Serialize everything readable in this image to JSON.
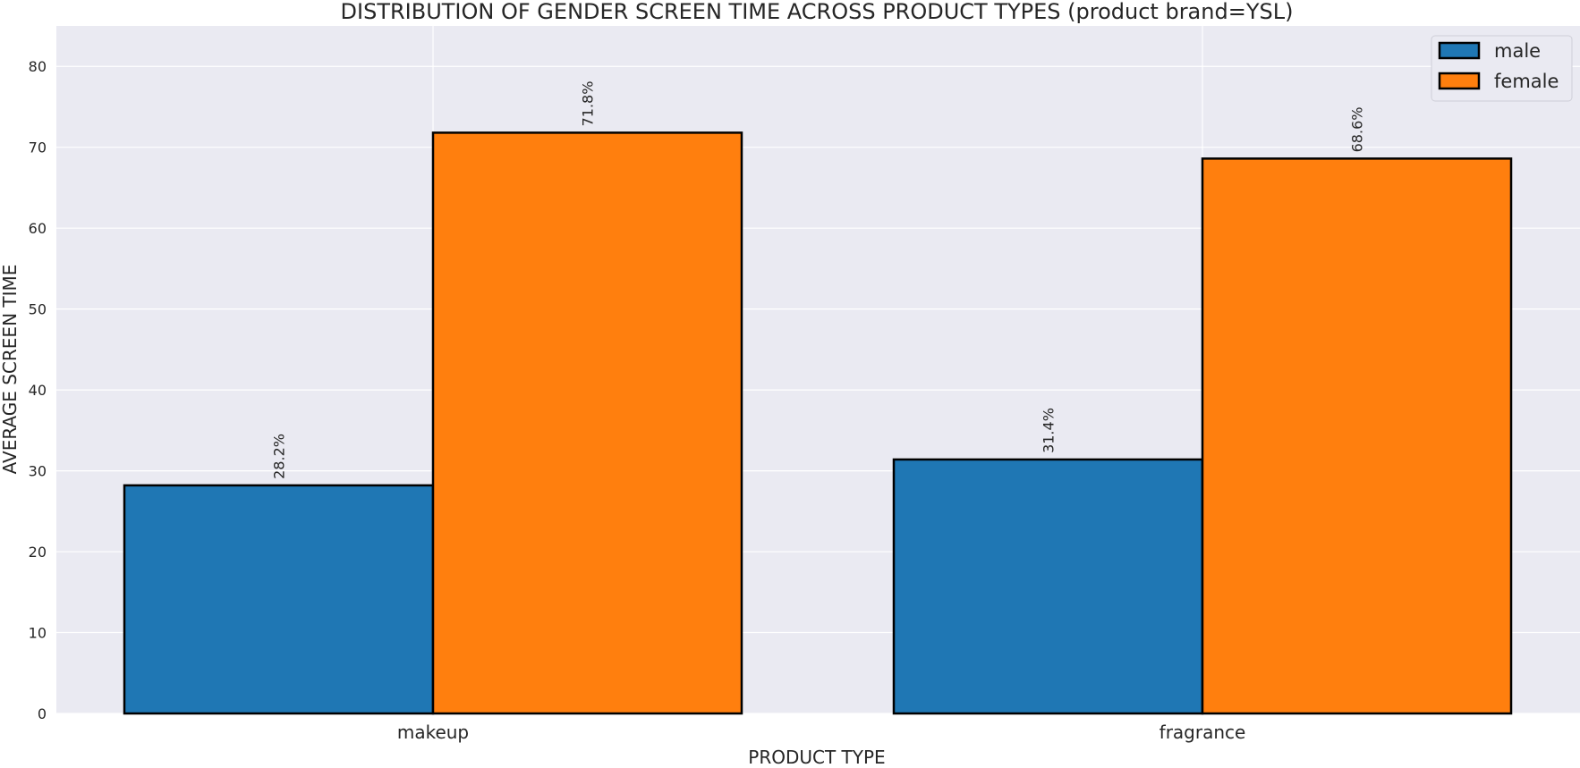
{
  "chart_data": {
    "type": "bar",
    "title": "DISTRIBUTION OF GENDER SCREEN TIME ACROSS PRODUCT TYPES (product brand=YSL)",
    "xlabel": "PRODUCT TYPE",
    "ylabel": "AVERAGE SCREEN TIME",
    "categories": [
      "makeup",
      "fragrance"
    ],
    "series": [
      {
        "name": "male",
        "values": [
          28.2,
          31.4
        ],
        "labels": [
          "28.2%",
          "31.4%"
        ],
        "color": "#1f77b4"
      },
      {
        "name": "female",
        "values": [
          71.8,
          68.6
        ],
        "labels": [
          "71.8%",
          "68.6%"
        ],
        "color": "#ff7f0e"
      }
    ],
    "ylim": [
      0,
      85
    ],
    "yticks": [
      0,
      10,
      20,
      30,
      40,
      50,
      60,
      70,
      80
    ],
    "grid": true,
    "legend": "top-right",
    "plot_background": "#eaeaf2",
    "edge_color": "#000000"
  }
}
